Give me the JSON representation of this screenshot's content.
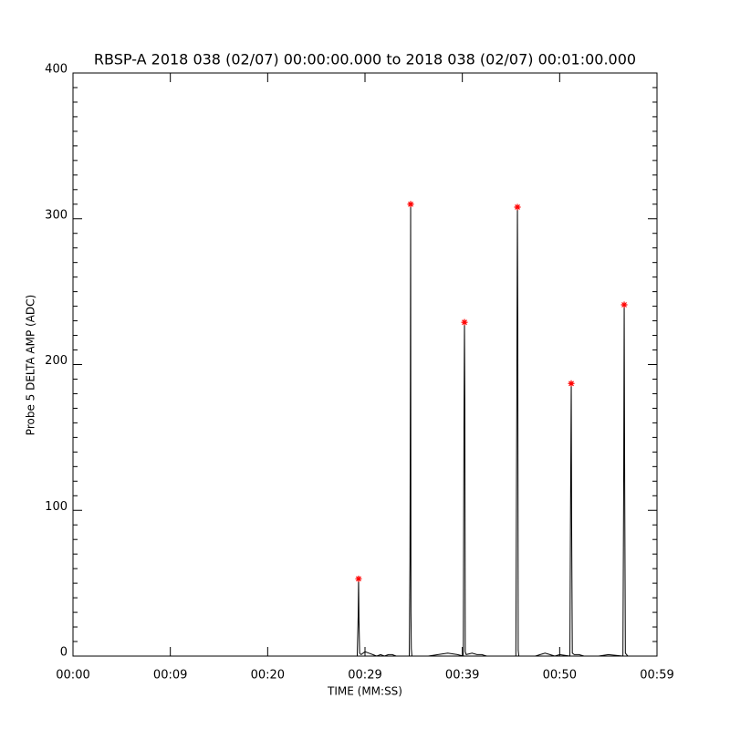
{
  "chart_data": {
    "type": "line",
    "title": "RBSP-A 2018 038 (02/07) 00:00:00.000 to 2018 038 (02/07) 00:01:00.000",
    "xlabel": "TIME (MM:SS)",
    "ylabel": "Probe 5 DELTA AMP (ADC)",
    "xlim": [
      0,
      60
    ],
    "ylim": [
      0,
      400
    ],
    "xticks": [
      {
        "value": 0,
        "label": "00:00"
      },
      {
        "value": 10,
        "label": "00:09"
      },
      {
        "value": 20,
        "label": "00:20"
      },
      {
        "value": 30,
        "label": "00:29"
      },
      {
        "value": 40,
        "label": "00:39"
      },
      {
        "value": 50,
        "label": "00:50"
      },
      {
        "value": 60,
        "label": "00:59"
      }
    ],
    "yticks": [
      0,
      100,
      200,
      300,
      400
    ],
    "yminorticks": [
      10,
      20,
      30,
      40,
      50,
      60,
      70,
      80,
      90,
      110,
      120,
      130,
      140,
      150,
      160,
      170,
      180,
      190,
      210,
      220,
      230,
      240,
      250,
      260,
      270,
      280,
      290,
      310,
      320,
      330,
      340,
      350,
      360,
      370,
      380,
      390
    ],
    "series": [
      {
        "style": "line",
        "color": "#000000",
        "x": [
          29.2,
          29.3,
          29.34,
          29.38,
          29.45,
          29.6,
          30.0,
          30.4,
          30.8,
          31.2,
          31.6,
          32.0,
          32.4,
          32.8,
          33.2,
          34.55,
          34.62,
          34.66,
          34.69,
          34.72,
          34.76,
          34.82,
          36.5,
          37.5,
          38.5,
          39.5,
          40.1,
          40.16,
          40.22,
          40.26,
          40.3,
          40.4,
          41.0,
          41.5,
          42.0,
          42.5,
          43.0,
          45.5,
          45.6,
          45.66,
          45.7,
          45.74,
          45.8,
          47.5,
          48.0,
          48.5,
          49.0,
          49.5,
          50.0,
          51.05,
          51.12,
          51.19,
          51.23,
          51.3,
          51.5,
          52.0,
          52.5,
          53.0,
          54.0,
          55.0,
          56.5,
          56.58,
          56.63,
          56.68,
          56.75,
          57.0,
          58.0
        ],
        "values": [
          0,
          28,
          53,
          25,
          2,
          1,
          3,
          2,
          1,
          0,
          1,
          0,
          1,
          1,
          0,
          0,
          65,
          188,
          310,
          30,
          5,
          0,
          0,
          1,
          2,
          1,
          0,
          144,
          229,
          170,
          3,
          1,
          2,
          1,
          1,
          0,
          0,
          0,
          180,
          308,
          225,
          4,
          0,
          0,
          1,
          2,
          1,
          0,
          1,
          0,
          105,
          187,
          92,
          2,
          1,
          1,
          0,
          0,
          0,
          1,
          0,
          124,
          241,
          120,
          2,
          0,
          0
        ]
      },
      {
        "style": "marker",
        "color": "#ff0000",
        "x": [
          29.34,
          34.69,
          40.22,
          45.66,
          51.19,
          56.63
        ],
        "values": [
          53,
          310,
          229,
          308,
          187,
          241
        ]
      }
    ]
  }
}
